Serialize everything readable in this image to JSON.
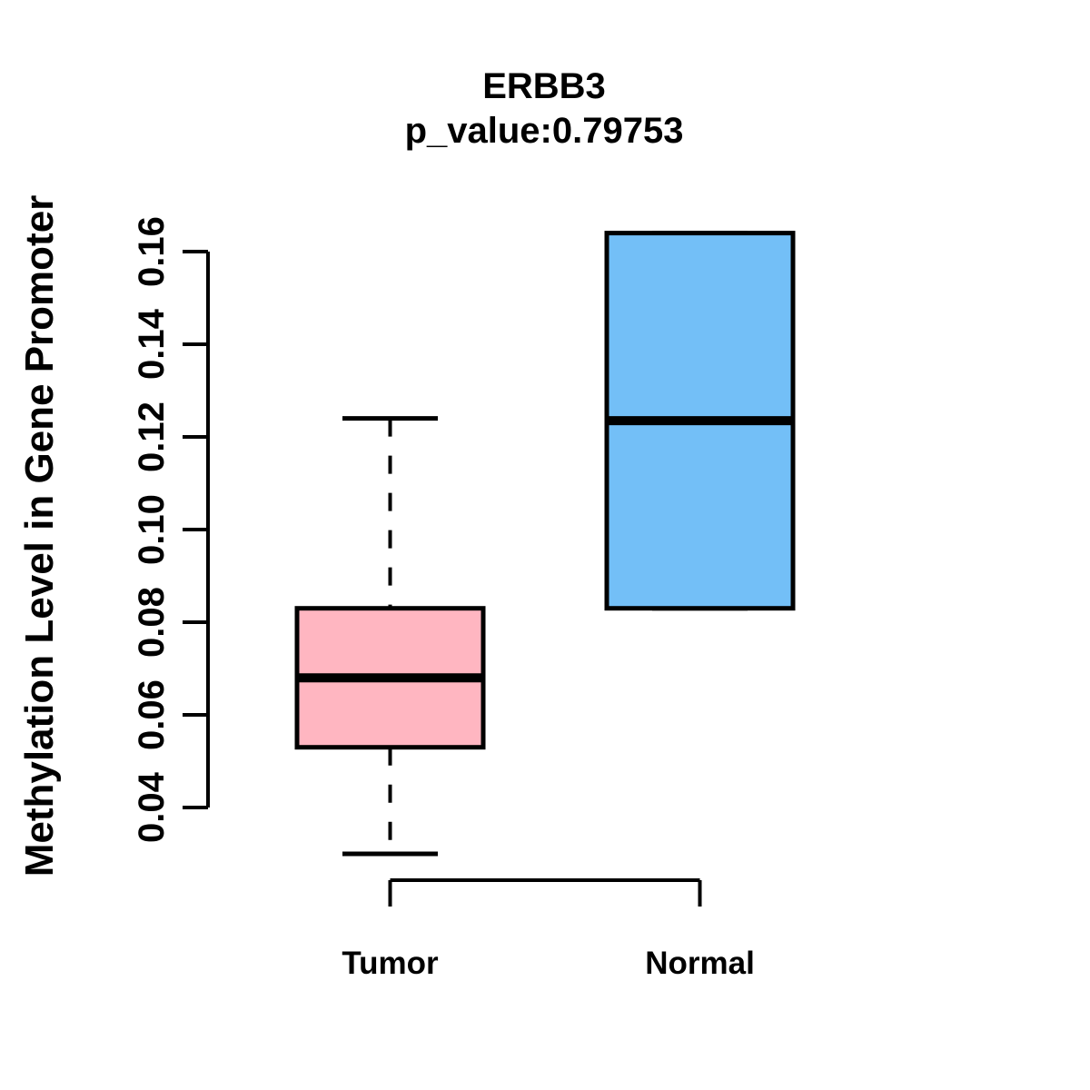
{
  "chart_data": {
    "type": "boxplot",
    "title": "ERBB3",
    "subtitle": "p_value:0.79753",
    "ylabel": "Methylation Level in Gene Promoter",
    "xlabel": "",
    "categories": [
      "Tumor",
      "Normal"
    ],
    "ytick_labels": [
      "0.04",
      "0.06",
      "0.08",
      "0.10",
      "0.12",
      "0.14",
      "0.16"
    ],
    "ytick_values": [
      0.04,
      0.06,
      0.08,
      0.1,
      0.12,
      0.14,
      0.16
    ],
    "ylim": [
      0.04,
      0.16
    ],
    "grid": false,
    "legend": "none",
    "colors": {
      "tumor_fill": "#FFB6C1",
      "normal_fill": "#73BFF7",
      "stroke": "#000000",
      "background": "#FFFFFF"
    },
    "series": [
      {
        "name": "Tumor",
        "fill": "#FFB6C1",
        "whisker_low": 0.03,
        "q1": 0.053,
        "median": 0.068,
        "q3": 0.083,
        "whisker_high": 0.124
      },
      {
        "name": "Normal",
        "fill": "#73BFF7",
        "whisker_low": 0.083,
        "q1": 0.083,
        "median": 0.1235,
        "q3": 0.164,
        "whisker_high": 0.164
      }
    ]
  }
}
